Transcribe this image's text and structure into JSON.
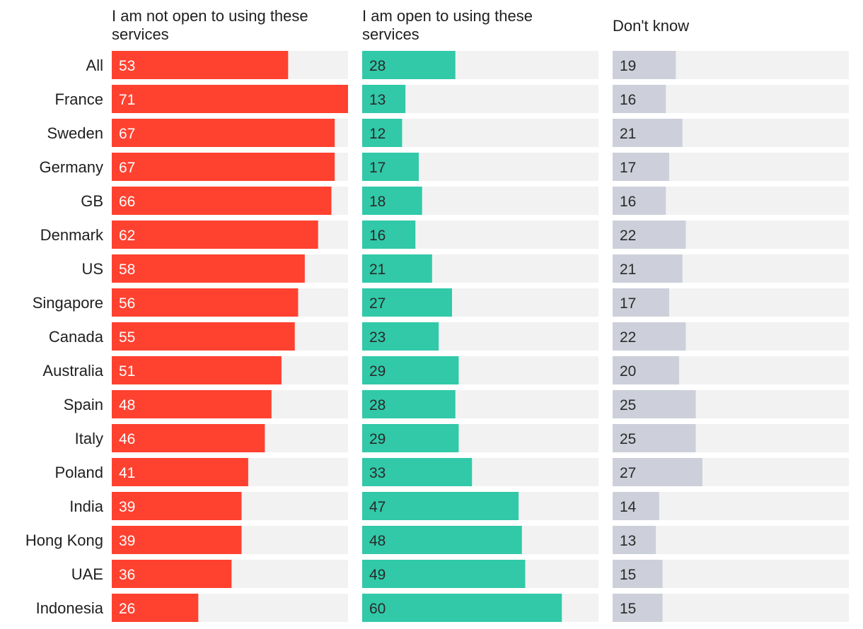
{
  "chart_data": {
    "type": "bar",
    "orientation": "horizontal",
    "layout": "small-multiples",
    "xlim": [
      0,
      100
    ],
    "grid": false,
    "categories": [
      "All",
      "France",
      "Sweden",
      "Germany",
      "GB",
      "Denmark",
      "US",
      "Singapore",
      "Canada",
      "Australia",
      "Spain",
      "Italy",
      "Poland",
      "India",
      "Hong Kong",
      "UAE",
      "Indonesia"
    ],
    "series": [
      {
        "name": "I am not open to using these services",
        "name_lines": [
          "I am not open to using these",
          "services"
        ],
        "color": "#ff4130",
        "label_color": "#ffffff",
        "values": [
          53,
          71,
          67,
          67,
          66,
          62,
          58,
          56,
          55,
          51,
          48,
          46,
          41,
          39,
          39,
          36,
          26
        ]
      },
      {
        "name": "I am open to using these services",
        "name_lines": [
          "I am open to using these",
          "services"
        ],
        "color": "#31c9a8",
        "label_color": "#2a2a2a",
        "values": [
          28,
          13,
          12,
          17,
          18,
          16,
          21,
          27,
          23,
          29,
          28,
          29,
          33,
          47,
          48,
          49,
          60
        ]
      },
      {
        "name": "Don't know",
        "name_lines": [
          "Don't know"
        ],
        "color": "#cdd0da",
        "label_color": "#2a2a2a",
        "values": [
          19,
          16,
          21,
          17,
          16,
          22,
          21,
          17,
          22,
          20,
          25,
          25,
          27,
          14,
          13,
          15,
          15
        ]
      }
    ]
  }
}
